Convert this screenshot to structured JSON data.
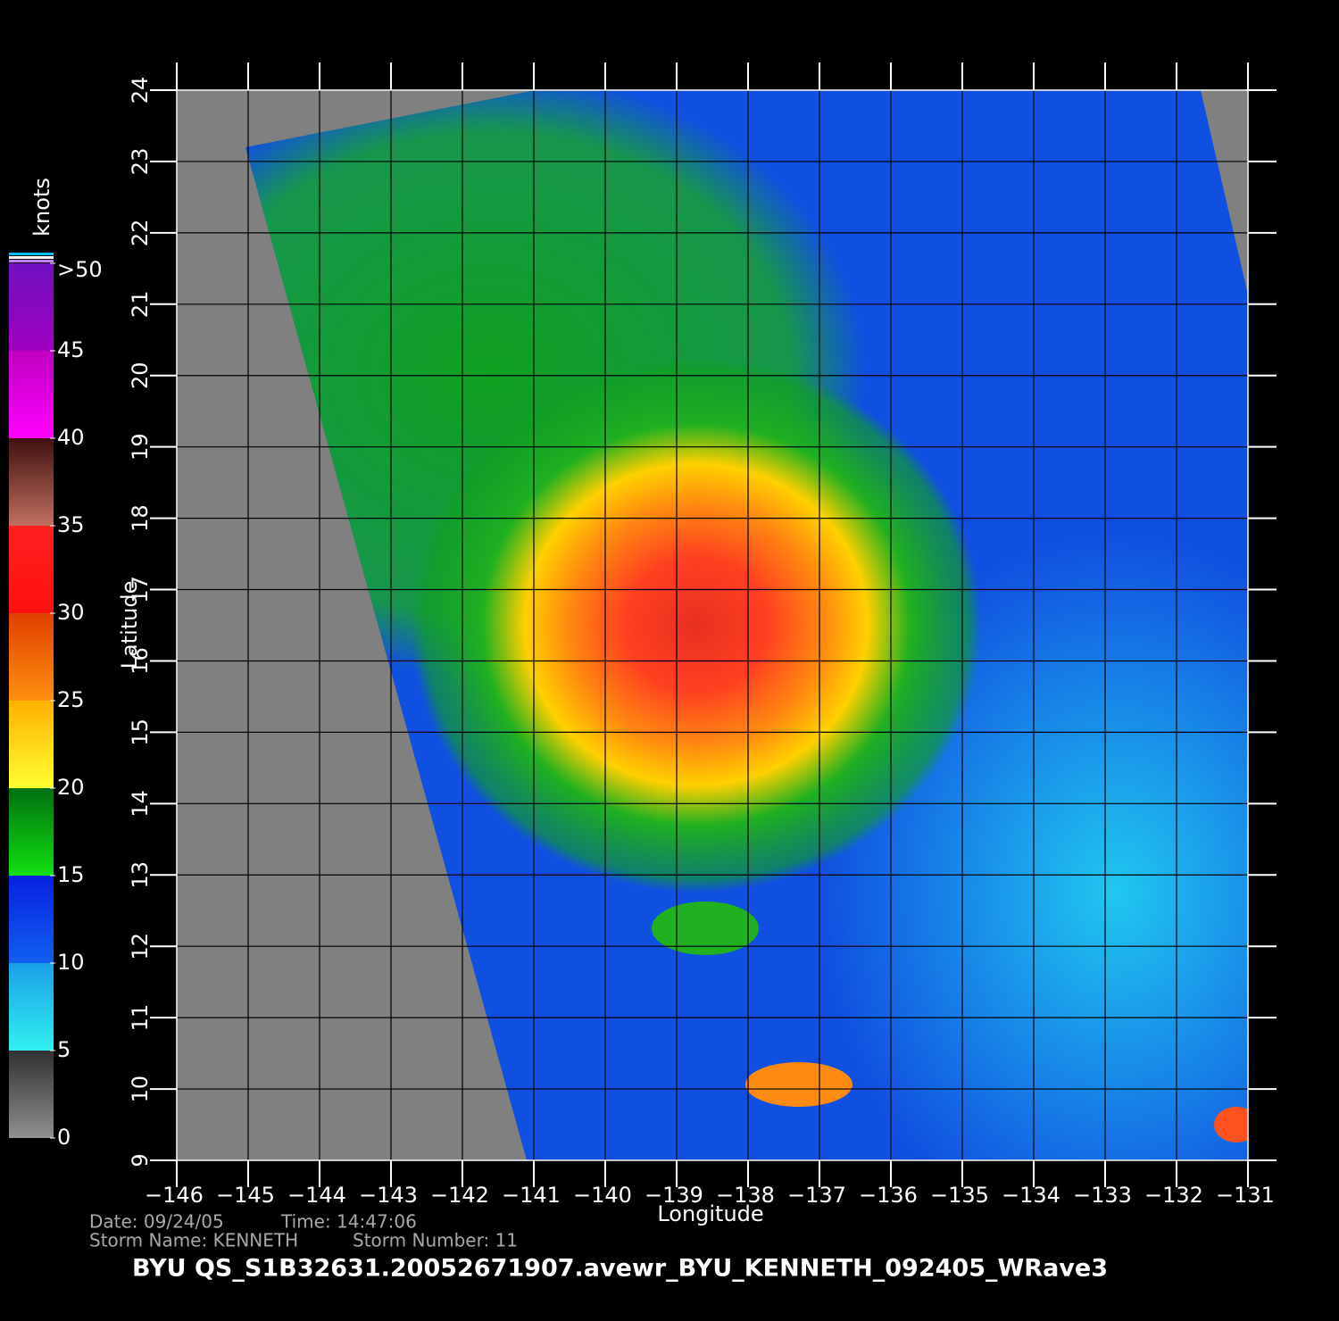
{
  "map": {
    "x_label": "Longitude",
    "y_label": "Latitude",
    "colorbar_label": "knots",
    "xlim": [
      -146,
      -131
    ],
    "ylim": [
      9,
      24
    ],
    "xticks": [
      {
        "value": -146,
        "label": "−146"
      },
      {
        "value": -145,
        "label": "−145"
      },
      {
        "value": -144,
        "label": "−144"
      },
      {
        "value": -143,
        "label": "−143"
      },
      {
        "value": -142,
        "label": "−142"
      },
      {
        "value": -141,
        "label": "−141"
      },
      {
        "value": -140,
        "label": "−140"
      },
      {
        "value": -139,
        "label": "−139"
      },
      {
        "value": -138,
        "label": "−138"
      },
      {
        "value": -137,
        "label": "−137"
      },
      {
        "value": -136,
        "label": "−136"
      },
      {
        "value": -135,
        "label": "−135"
      },
      {
        "value": -134,
        "label": "−134"
      },
      {
        "value": -133,
        "label": "−133"
      },
      {
        "value": -132,
        "label": "−132"
      },
      {
        "value": -131,
        "label": "−131"
      }
    ],
    "yticks": [
      9,
      10,
      11,
      12,
      13,
      14,
      15,
      16,
      17,
      18,
      19,
      20,
      21,
      22,
      23,
      24
    ],
    "colorbar_lim": [
      0,
      50
    ],
    "colorbar_ticks": [
      0,
      5,
      10,
      15,
      20,
      25,
      30,
      35,
      40,
      45,
      {
        "value": 50,
        "label": ">50"
      }
    ]
  },
  "footer": {
    "line1": [
      "Date: 09/24/05",
      "Time: 14:47:06"
    ],
    "line2": [
      "Storm Name: KENNETH",
      "Storm Number: 11"
    ],
    "title": "BYU QS_S1B32631.20052671907.avewr_BYU_KENNETH_092405_WRave3"
  }
}
